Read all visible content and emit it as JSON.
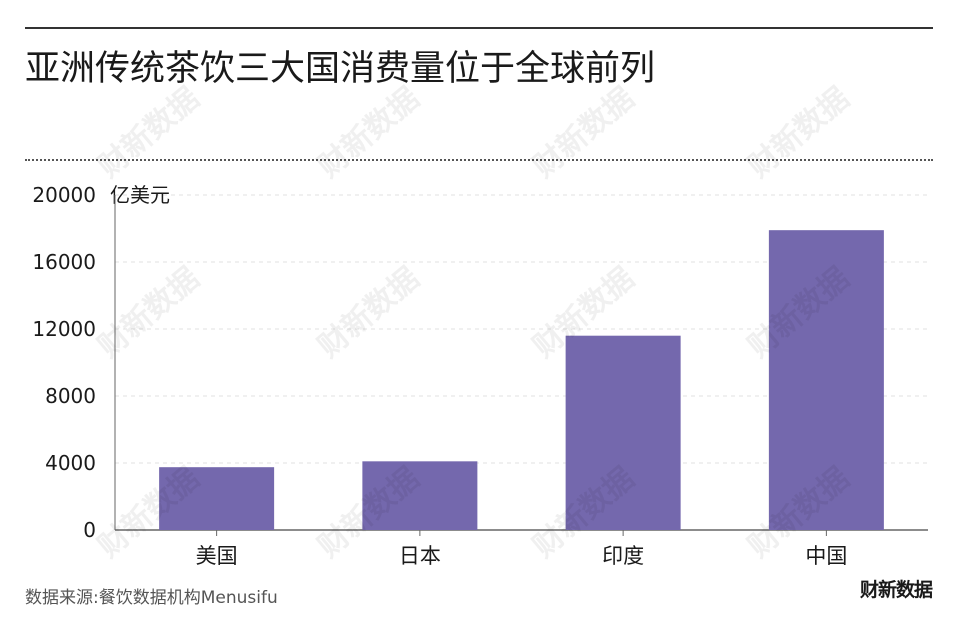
{
  "title": "亚洲传统茶饮三大国消费量位于全球前列",
  "source": "数据来源:餐饮数据机构Menusifu",
  "logo": "财新数据",
  "watermark": "财新数据",
  "colors": {
    "bar": "#7468ad",
    "axis": "#666666",
    "grid": "#e2e2e2",
    "text": "#1a1a1a"
  },
  "chart_data": {
    "type": "bar",
    "unit_label": "亿美元",
    "categories": [
      "美国",
      "日本",
      "印度",
      "中国"
    ],
    "values": [
      3750,
      4100,
      11600,
      17900
    ],
    "ylim": [
      0,
      20000
    ],
    "yticks": [
      "0",
      "4000",
      "8000",
      "12000",
      "16000",
      "20000"
    ],
    "grid": true,
    "legend": "none"
  }
}
